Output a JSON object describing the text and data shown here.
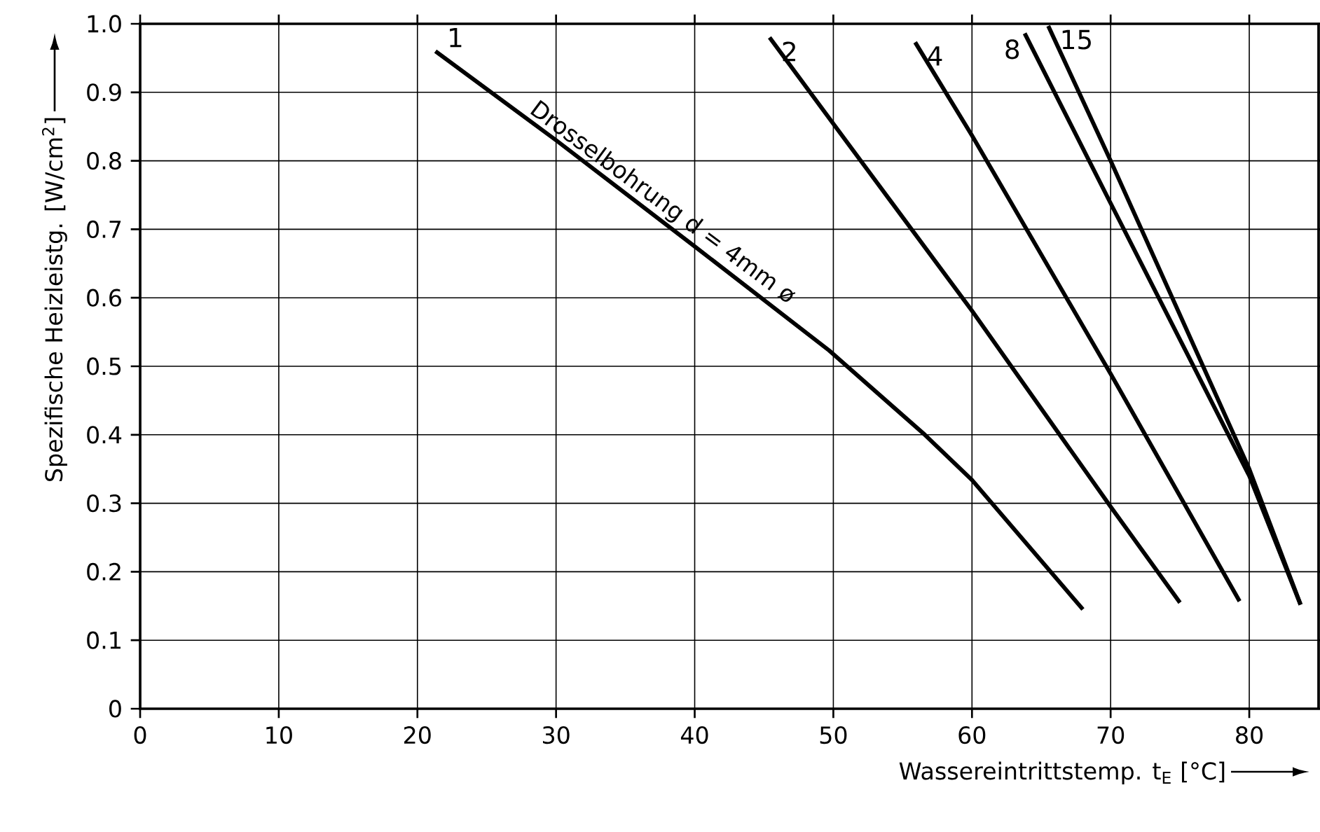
{
  "chart_data": {
    "type": "line",
    "xlabel": "Wassereintrittstemp. t$_{E}$ [°C]",
    "ylabel": "Spezifische Heizleistg. [W/cm$^{2}$]",
    "xlim": [
      0,
      85
    ],
    "ylim": [
      0,
      1.0
    ],
    "xticks": [
      0,
      10,
      20,
      30,
      40,
      50,
      60,
      70,
      80
    ],
    "yticks": [
      0,
      0.1,
      0.2,
      0.3,
      0.4,
      0.5,
      0.6,
      0.7,
      0.8,
      0.9,
      {
        "value": 1.0,
        "label": "1.0"
      }
    ],
    "grid": true,
    "marker": "none",
    "line_style": "solid",
    "series": [
      {
        "name": "1",
        "color": "#000000",
        "x": [
          21.3,
          30,
          40,
          49.7,
          56.6,
          60,
          68
        ],
        "values": [
          0.96,
          0.83,
          0.675,
          0.523,
          0.4,
          0.334,
          0.145
        ]
      },
      {
        "name": "2",
        "color": "#000000",
        "x": [
          45.4,
          50,
          60,
          70,
          75
        ],
        "values": [
          0.98,
          0.854,
          0.581,
          0.295,
          0.155
        ]
      },
      {
        "name": "4",
        "color": "#000000",
        "x": [
          55.9,
          60,
          70,
          79.3
        ],
        "values": [
          0.973,
          0.837,
          0.489,
          0.157
        ]
      },
      {
        "name": "8",
        "color": "#000000",
        "x": [
          63.8,
          70,
          80,
          83.7
        ],
        "values": [
          0.986,
          0.738,
          0.34,
          0.152
        ]
      },
      {
        "name": "15",
        "color": "#000000",
        "x": [
          65.5,
          70,
          80,
          83.7
        ],
        "values": [
          0.997,
          0.8,
          0.35,
          0.152
        ]
      }
    ],
    "annotations": [
      {
        "text": "Drosselbohrung d = 4mm ø",
        "x": 37,
        "y": 0.72
      }
    ]
  }
}
